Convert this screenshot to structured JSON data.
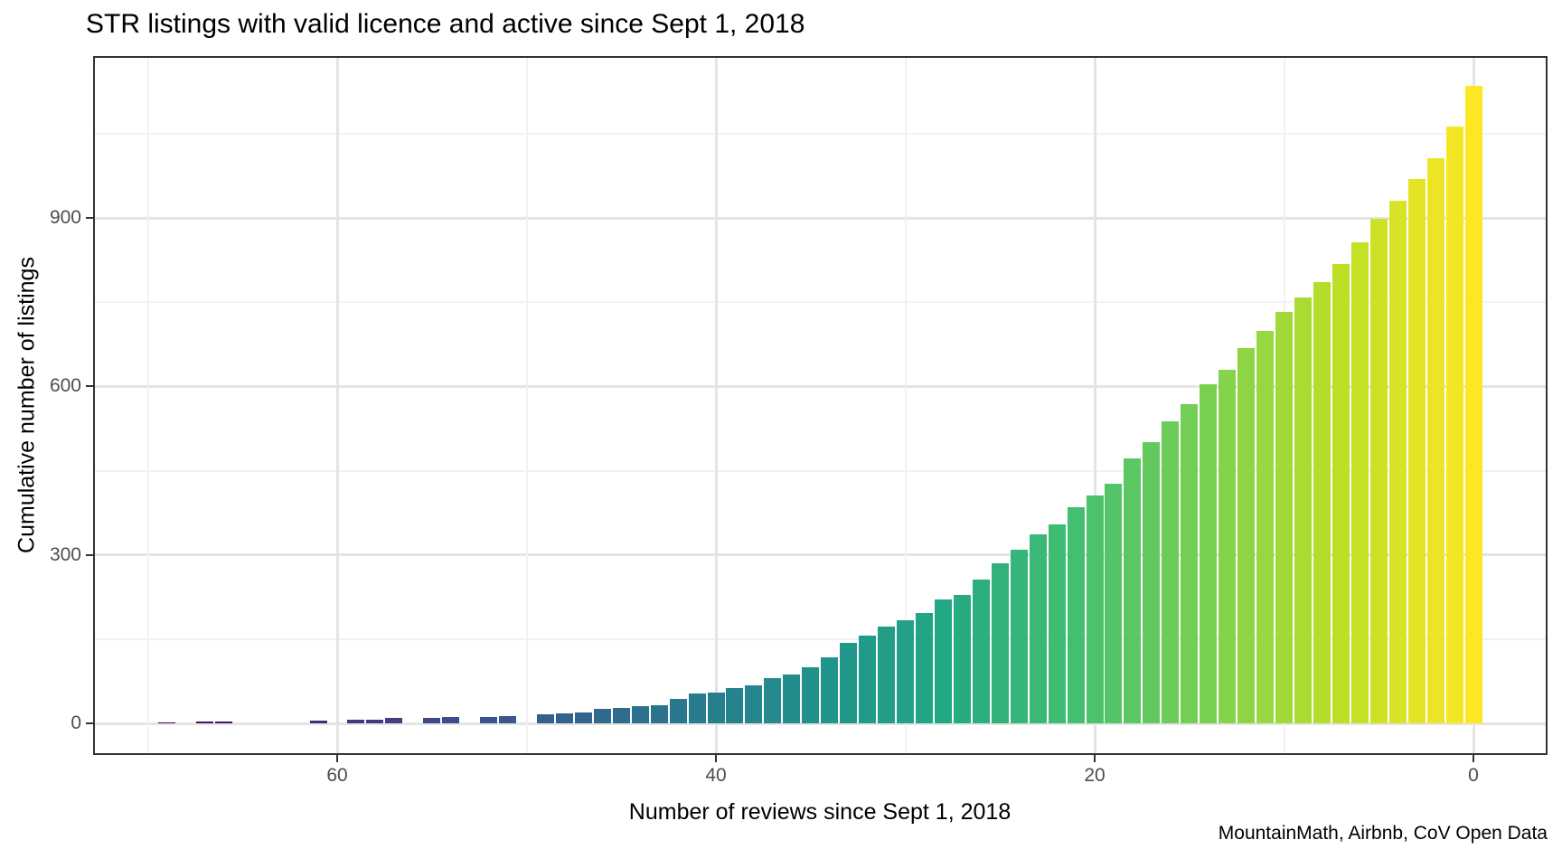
{
  "footer": "MountainMath, Airbnb, CoV Open Data",
  "colors": {
    "background": "#ffffff",
    "panel_border": "#333333",
    "grid_major": "#e4e4e4",
    "grid_minor": "#f2f2f2",
    "tick_label": "#4d4d4d",
    "text": "#000000"
  },
  "chart_data": {
    "type": "bar",
    "title": "STR listings with valid licence and active since Sept 1, 2018",
    "xlabel": "Number of reviews since Sept 1, 2018",
    "ylabel": "Cumulative number of listings",
    "x_axis": {
      "ticks": [
        60,
        40,
        20,
        0
      ],
      "minor": [
        70,
        50,
        30,
        10
      ],
      "reversed": true,
      "range": [
        73,
        -4
      ]
    },
    "y_axis": {
      "ticks": [
        0,
        300,
        600,
        900
      ],
      "minor": [
        150,
        450,
        750,
        1050
      ],
      "range": [
        0,
        1190
      ]
    },
    "grid": true,
    "legend": "none",
    "color_scale": {
      "name": "viridis",
      "mapped_to": "reviews",
      "domain": [
        70,
        0
      ],
      "stops": [
        [
          0.0,
          "#440154"
        ],
        [
          0.1,
          "#482475"
        ],
        [
          0.2,
          "#414487"
        ],
        [
          0.3,
          "#355f8d"
        ],
        [
          0.4,
          "#2a788e"
        ],
        [
          0.5,
          "#21918c"
        ],
        [
          0.6,
          "#22a884"
        ],
        [
          0.7,
          "#44bf70"
        ],
        [
          0.8,
          "#7ad151"
        ],
        [
          0.9,
          "#bddf26"
        ],
        [
          1.0,
          "#fde725"
        ]
      ]
    },
    "bars": [
      {
        "reviews": 0,
        "count": 1135
      },
      {
        "reviews": 1,
        "count": 1062
      },
      {
        "reviews": 2,
        "count": 1006
      },
      {
        "reviews": 3,
        "count": 970
      },
      {
        "reviews": 4,
        "count": 930
      },
      {
        "reviews": 5,
        "count": 898
      },
      {
        "reviews": 6,
        "count": 856
      },
      {
        "reviews": 7,
        "count": 818
      },
      {
        "reviews": 8,
        "count": 785
      },
      {
        "reviews": 9,
        "count": 758
      },
      {
        "reviews": 10,
        "count": 733
      },
      {
        "reviews": 11,
        "count": 698
      },
      {
        "reviews": 12,
        "count": 668
      },
      {
        "reviews": 13,
        "count": 629
      },
      {
        "reviews": 14,
        "count": 604
      },
      {
        "reviews": 15,
        "count": 569
      },
      {
        "reviews": 16,
        "count": 537
      },
      {
        "reviews": 17,
        "count": 501
      },
      {
        "reviews": 18,
        "count": 472
      },
      {
        "reviews": 19,
        "count": 427
      },
      {
        "reviews": 20,
        "count": 406
      },
      {
        "reviews": 21,
        "count": 384
      },
      {
        "reviews": 22,
        "count": 355
      },
      {
        "reviews": 23,
        "count": 336
      },
      {
        "reviews": 24,
        "count": 309
      },
      {
        "reviews": 25,
        "count": 285
      },
      {
        "reviews": 26,
        "count": 256
      },
      {
        "reviews": 27,
        "count": 229
      },
      {
        "reviews": 28,
        "count": 221
      },
      {
        "reviews": 29,
        "count": 196
      },
      {
        "reviews": 30,
        "count": 184
      },
      {
        "reviews": 31,
        "count": 172
      },
      {
        "reviews": 32,
        "count": 156
      },
      {
        "reviews": 33,
        "count": 143
      },
      {
        "reviews": 34,
        "count": 118
      },
      {
        "reviews": 35,
        "count": 100
      },
      {
        "reviews": 36,
        "count": 87
      },
      {
        "reviews": 37,
        "count": 81
      },
      {
        "reviews": 38,
        "count": 68
      },
      {
        "reviews": 39,
        "count": 62
      },
      {
        "reviews": 40,
        "count": 55
      },
      {
        "reviews": 41,
        "count": 53
      },
      {
        "reviews": 42,
        "count": 44
      },
      {
        "reviews": 43,
        "count": 33
      },
      {
        "reviews": 44,
        "count": 31
      },
      {
        "reviews": 45,
        "count": 28
      },
      {
        "reviews": 46,
        "count": 26
      },
      {
        "reviews": 47,
        "count": 20
      },
      {
        "reviews": 48,
        "count": 18
      },
      {
        "reviews": 49,
        "count": 16
      },
      {
        "reviews": 51,
        "count": 13
      },
      {
        "reviews": 52,
        "count": 12
      },
      {
        "reviews": 54,
        "count": 11
      },
      {
        "reviews": 55,
        "count": 10
      },
      {
        "reviews": 57,
        "count": 9
      },
      {
        "reviews": 58,
        "count": 7
      },
      {
        "reviews": 59,
        "count": 6
      },
      {
        "reviews": 61,
        "count": 5
      },
      {
        "reviews": 66,
        "count": 4
      },
      {
        "reviews": 67,
        "count": 3
      },
      {
        "reviews": 69,
        "count": 2
      }
    ]
  }
}
